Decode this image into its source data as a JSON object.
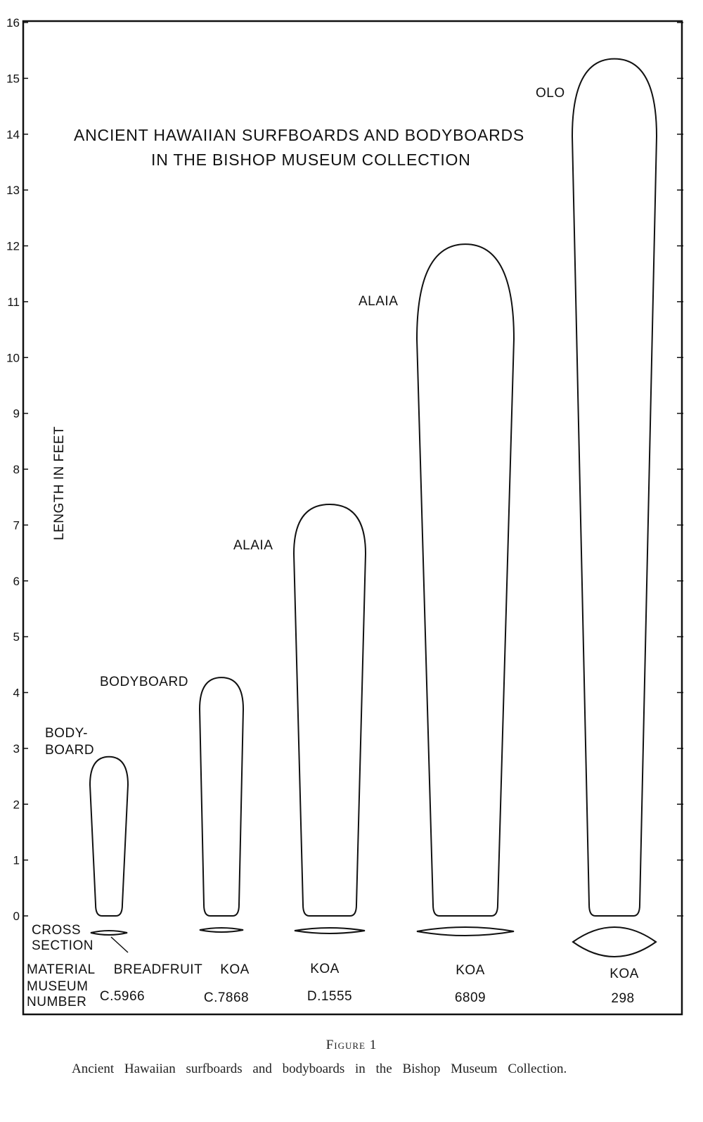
{
  "chart_data": {
    "type": "diagram",
    "title_line1": "ANCIENT HAWAIIAN SURFBOARDS AND BODYBOARDS",
    "title_line2": "IN THE BISHOP MUSEUM COLLECTION",
    "ylabel": "LENGTH IN FEET",
    "ylim": [
      0,
      16
    ],
    "yticks": [
      "0",
      "1",
      "2",
      "3",
      "4",
      "5",
      "6",
      "7",
      "8",
      "9",
      "10",
      "11",
      "12",
      "13",
      "14",
      "15",
      "16"
    ],
    "row_labels": {
      "cross_section_1": "CROSS",
      "cross_section_2": "SECTION",
      "material": "MATERIAL",
      "museum_1": "MUSEUM",
      "museum_2": "NUMBER"
    },
    "boards": [
      {
        "type_label": "BODY-",
        "type_label2": "BOARD",
        "length_ft": 2.85,
        "material": "BREADFRUIT",
        "museum_number": "C.5966"
      },
      {
        "type_label": "BODYBOARD",
        "type_label2": "",
        "length_ft": 4.27,
        "material": "KOA",
        "museum_number": "C.7868"
      },
      {
        "type_label": "ALAIA",
        "type_label2": "",
        "length_ft": 7.37,
        "material": "KOA",
        "museum_number": "D.1555"
      },
      {
        "type_label": "ALAIA",
        "type_label2": "",
        "length_ft": 12.03,
        "material": "KOA",
        "museum_number": "6809"
      },
      {
        "type_label": "OLO",
        "type_label2": "",
        "length_ft": 15.35,
        "material": "KOA",
        "museum_number": "298"
      }
    ]
  },
  "caption": {
    "figure": "Figure 1",
    "text": "Ancient Hawaiian surfboards and bodyboards in the Bishop Museum Collection."
  }
}
